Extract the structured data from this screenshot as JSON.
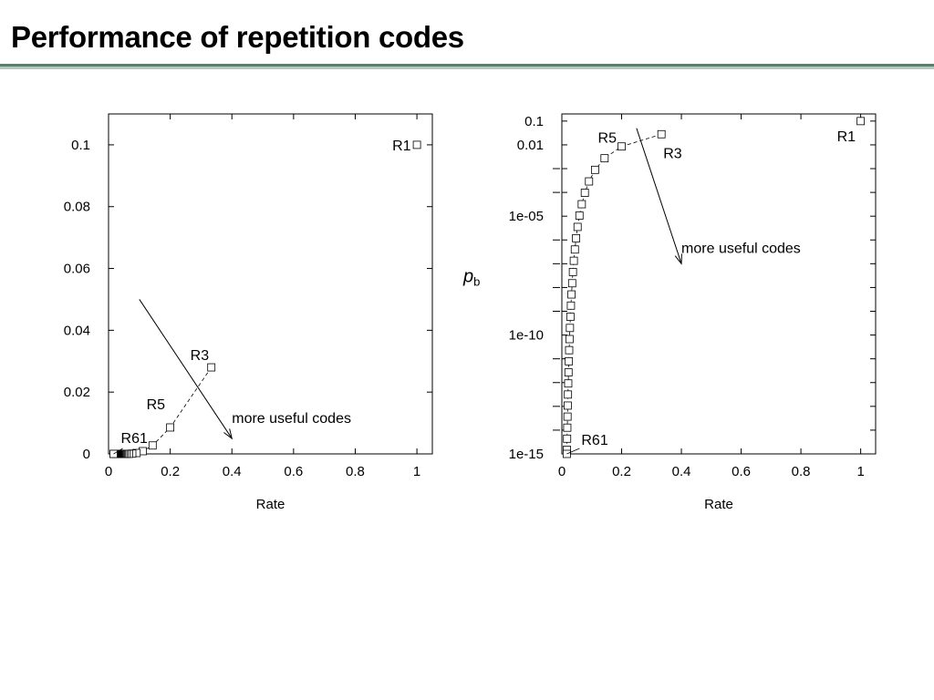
{
  "slide": {
    "title": "Performance of repetition codes"
  },
  "chart_data": [
    {
      "type": "scatter",
      "title": "",
      "xlabel": "Rate",
      "ylabel": "",
      "xlim": [
        0,
        1.05
      ],
      "ylim": [
        0,
        0.11
      ],
      "yscale": "linear",
      "grid": false,
      "xticks": [
        0,
        0.2,
        0.4,
        0.6,
        0.8,
        1
      ],
      "xtick_labels": [
        "0",
        "0.2",
        "0.4",
        "0.6",
        "0.8",
        "1"
      ],
      "yticks": [
        0,
        0.02,
        0.04,
        0.06,
        0.08,
        0.1
      ],
      "ytick_labels": [
        "0",
        "0.02",
        "0.04",
        "0.06",
        "0.08",
        "0.1"
      ],
      "series": [
        {
          "values": [
            [
              1,
              0.1
            ],
            [
              0.3333,
              0.028
            ],
            [
              0.2,
              0.00856
            ],
            [
              0.1429,
              0.00273
            ],
            [
              0.1111,
              0.00089
            ],
            [
              0.0909,
              0.00029
            ],
            [
              0.0769,
              0.0001
            ],
            [
              0.0667,
              3e-05
            ],
            [
              0.0588,
              1e-05
            ],
            [
              0.0526,
              4e-06
            ],
            [
              0.0476,
              1e-06
            ],
            [
              0.0435,
              5e-07
            ],
            [
              0.04,
              2e-07
            ],
            [
              0.037,
              1e-07
            ],
            [
              0.0345,
              0.0
            ],
            [
              0.0323,
              0.0
            ],
            [
              0.0303,
              0.0
            ],
            [
              0.0286,
              0.0
            ],
            [
              0.027,
              0.0
            ],
            [
              0.0256,
              0.0
            ],
            [
              0.0244,
              0.0
            ],
            [
              0.0233,
              0.0
            ],
            [
              0.0222,
              0.0
            ],
            [
              0.0213,
              0.0
            ],
            [
              0.0204,
              0.0
            ],
            [
              0.0196,
              0.0
            ],
            [
              0.0189,
              0.0
            ],
            [
              0.0182,
              0.0
            ],
            [
              0.0175,
              0.0
            ],
            [
              0.0169,
              0.0
            ],
            [
              0.0164,
              0.0
            ]
          ]
        }
      ],
      "point_labels": [
        {
          "text": "R1",
          "x": 1,
          "y": 0.1
        },
        {
          "text": "R3",
          "x": 0.3333,
          "y": 0.028
        },
        {
          "text": "R5",
          "x": 0.2,
          "y": 0.00856
        },
        {
          "text": "R61",
          "x": 0.0164,
          "y": 0.0
        }
      ],
      "annotations": [
        {
          "text": "more useful codes",
          "arrow_from": [
            0.1,
            0.05
          ],
          "arrow_to": [
            0.4,
            0.005
          ]
        }
      ]
    },
    {
      "type": "scatter",
      "title": "",
      "xlabel": "Rate",
      "ylabel": "p_b",
      "xlim": [
        0,
        1.05
      ],
      "ylim": [
        1e-15,
        0.2
      ],
      "yscale": "log",
      "grid": false,
      "xticks": [
        0,
        0.2,
        0.4,
        0.6,
        0.8,
        1
      ],
      "xtick_labels": [
        "0",
        "0.2",
        "0.4",
        "0.6",
        "0.8",
        "1"
      ],
      "yticks": [
        0.1,
        0.01,
        1e-05,
        1e-10,
        1e-15
      ],
      "ytick_labels": [
        "0.1",
        "0.01",
        "1e-05",
        "1e-10",
        "1e-15"
      ],
      "series": [
        {
          "values": [
            [
              1,
              0.1
            ],
            [
              0.3333,
              0.028
            ],
            [
              0.2,
              0.00856
            ],
            [
              0.1429,
              0.00273
            ],
            [
              0.1111,
              0.00089
            ],
            [
              0.0909,
              0.00029
            ],
            [
              0.0769,
              9.62e-05
            ],
            [
              0.0667,
              3.19e-05
            ],
            [
              0.0588,
              1.06e-05
            ],
            [
              0.0526,
              3.53e-06
            ],
            [
              0.0476,
              1.18e-06
            ],
            [
              0.0435,
              3.96e-07
            ],
            [
              0.04,
              1.33e-07
            ],
            [
              0.037,
              4.47e-08
            ],
            [
              0.0345,
              1.51e-08
            ],
            [
              0.0323,
              5.1e-09
            ],
            [
              0.0303,
              1.73e-09
            ],
            [
              0.0286,
              5.86e-10
            ],
            [
              0.027,
              1.99e-10
            ],
            [
              0.0256,
              6.77e-11
            ],
            [
              0.0244,
              2.31e-11
            ],
            [
              0.0233,
              7.88e-12
            ],
            [
              0.0222,
              2.69e-12
            ],
            [
              0.0213,
              9.2e-13
            ],
            [
              0.0204,
              3.15e-13
            ],
            [
              0.0196,
              1.08e-13
            ],
            [
              0.0189,
              3.7e-14
            ],
            [
              0.0182,
              1.27e-14
            ],
            [
              0.0175,
              4.37e-15
            ],
            [
              0.0169,
              1.5e-15
            ],
            [
              0.0164,
              1e-15
            ]
          ]
        }
      ],
      "point_labels": [
        {
          "text": "R1",
          "x": 1,
          "y": 0.1
        },
        {
          "text": "R5",
          "x": 0.2,
          "y": 0.00856
        },
        {
          "text": "R3",
          "x": 0.3333,
          "y": 0.028
        },
        {
          "text": "R61",
          "x": 0.0164,
          "y": 1e-15
        }
      ],
      "annotations": [
        {
          "text": "more useful codes",
          "arrow_from": [
            0.25,
            0.05
          ],
          "arrow_to": [
            0.4,
            1e-07
          ]
        }
      ]
    }
  ]
}
